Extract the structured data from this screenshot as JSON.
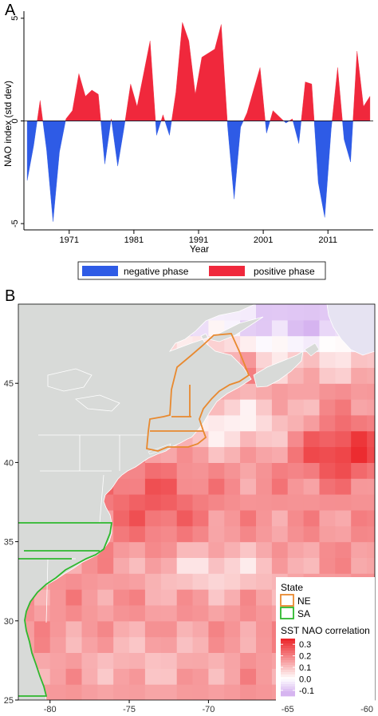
{
  "panel_a": {
    "label": "A",
    "ylabel": "NAO index (std dev)",
    "xlabel": "Year",
    "legend": {
      "negative": "negative phase",
      "positive": "positive phase"
    }
  },
  "panel_b": {
    "label": "B",
    "legend_state_title": "State",
    "legend_state_items": [
      {
        "name": "NE",
        "color": "#E8892F"
      },
      {
        "name": "SA",
        "color": "#2EB82E"
      }
    ],
    "legend_corr_title": "SST NAO correlation",
    "colorbar_ticks": [
      "0.3",
      "0.2",
      "0.1",
      "0.0",
      "-0.1"
    ]
  },
  "colors": {
    "negative": "#2E5BE6",
    "positive": "#F0283C",
    "land": "#D8DAD8",
    "ocean_warm": "#EE3A3A",
    "ocean_cool": "#D8B8F0",
    "NE": "#E8892F",
    "SA": "#2EB82E"
  },
  "chart_data": [
    {
      "type": "area",
      "title": "",
      "xlabel": "Year",
      "ylabel": "NAO index (std dev)",
      "xlim": [
        1964,
        2018
      ],
      "ylim": [
        -5.5,
        5.5
      ],
      "xticks": [
        1971,
        1981,
        1991,
        2001,
        2011
      ],
      "yticks": [
        -5,
        0,
        5
      ],
      "series": [
        {
          "name": "NAO index",
          "x": [
            1964.5,
            1965.5,
            1966.5,
            1967.5,
            1968.5,
            1969.5,
            1970.5,
            1971.5,
            1972.5,
            1973.5,
            1974.5,
            1975.5,
            1976.5,
            1977.5,
            1978.5,
            1979.5,
            1980.5,
            1981.5,
            1982.5,
            1983.5,
            1984.5,
            1985.5,
            1986.5,
            1987.5,
            1988.5,
            1989.5,
            1990.5,
            1991.5,
            1992.5,
            1993.5,
            1994.5,
            1995.5,
            1996.5,
            1997.5,
            1998.5,
            1999.5,
            2000.5,
            2001.5,
            2002.5,
            2003.5,
            2004.5,
            2005.5,
            2006.5,
            2007.5,
            2008.5,
            2009.5,
            2010.5,
            2011.5,
            2012.5,
            2013.5,
            2014.5,
            2015.5,
            2016.5,
            2017.5
          ],
          "y": [
            -2.9,
            -1.2,
            1.0,
            -1.4,
            -4.9,
            -1.5,
            0.1,
            0.5,
            2.3,
            1.2,
            1.5,
            1.3,
            -2.1,
            0.1,
            -2.2,
            -0.3,
            1.8,
            0.7,
            2.3,
            3.9,
            -0.7,
            0.3,
            -0.7,
            1.4,
            4.8,
            3.9,
            1.3,
            3.1,
            3.3,
            3.5,
            4.7,
            -0.3,
            -3.8,
            -0.3,
            0.4,
            1.5,
            2.6,
            -0.6,
            0.5,
            0.2,
            -0.1,
            0.1,
            -1.1,
            1.9,
            1.8,
            -3.0,
            -4.7,
            -0.4,
            2.6,
            -0.9,
            -2.0,
            3.4,
            0.7,
            1.2
          ]
        }
      ],
      "legend": [
        "negative phase",
        "positive phase"
      ],
      "legend_position": "bottom",
      "grid": false
    },
    {
      "type": "heatmap",
      "title": "",
      "xlabel": "",
      "ylabel": "",
      "xlim": [
        -82,
        -59.5
      ],
      "ylim": [
        25,
        50
      ],
      "xticks": [
        -80,
        -75,
        -70,
        -65,
        -60
      ],
      "yticks": [
        25,
        30,
        35,
        40,
        45
      ],
      "value_name": "SST NAO correlation",
      "value_range": [
        -0.15,
        0.35
      ],
      "colorbar_ticks": [
        0.3,
        0.2,
        0.1,
        0.0,
        -0.1
      ],
      "legend_position": "bottom-right",
      "grid": false,
      "regions": [
        {
          "name": "NE",
          "color": "#E8892F"
        },
        {
          "name": "SA",
          "color": "#2EB82E"
        }
      ]
    }
  ]
}
